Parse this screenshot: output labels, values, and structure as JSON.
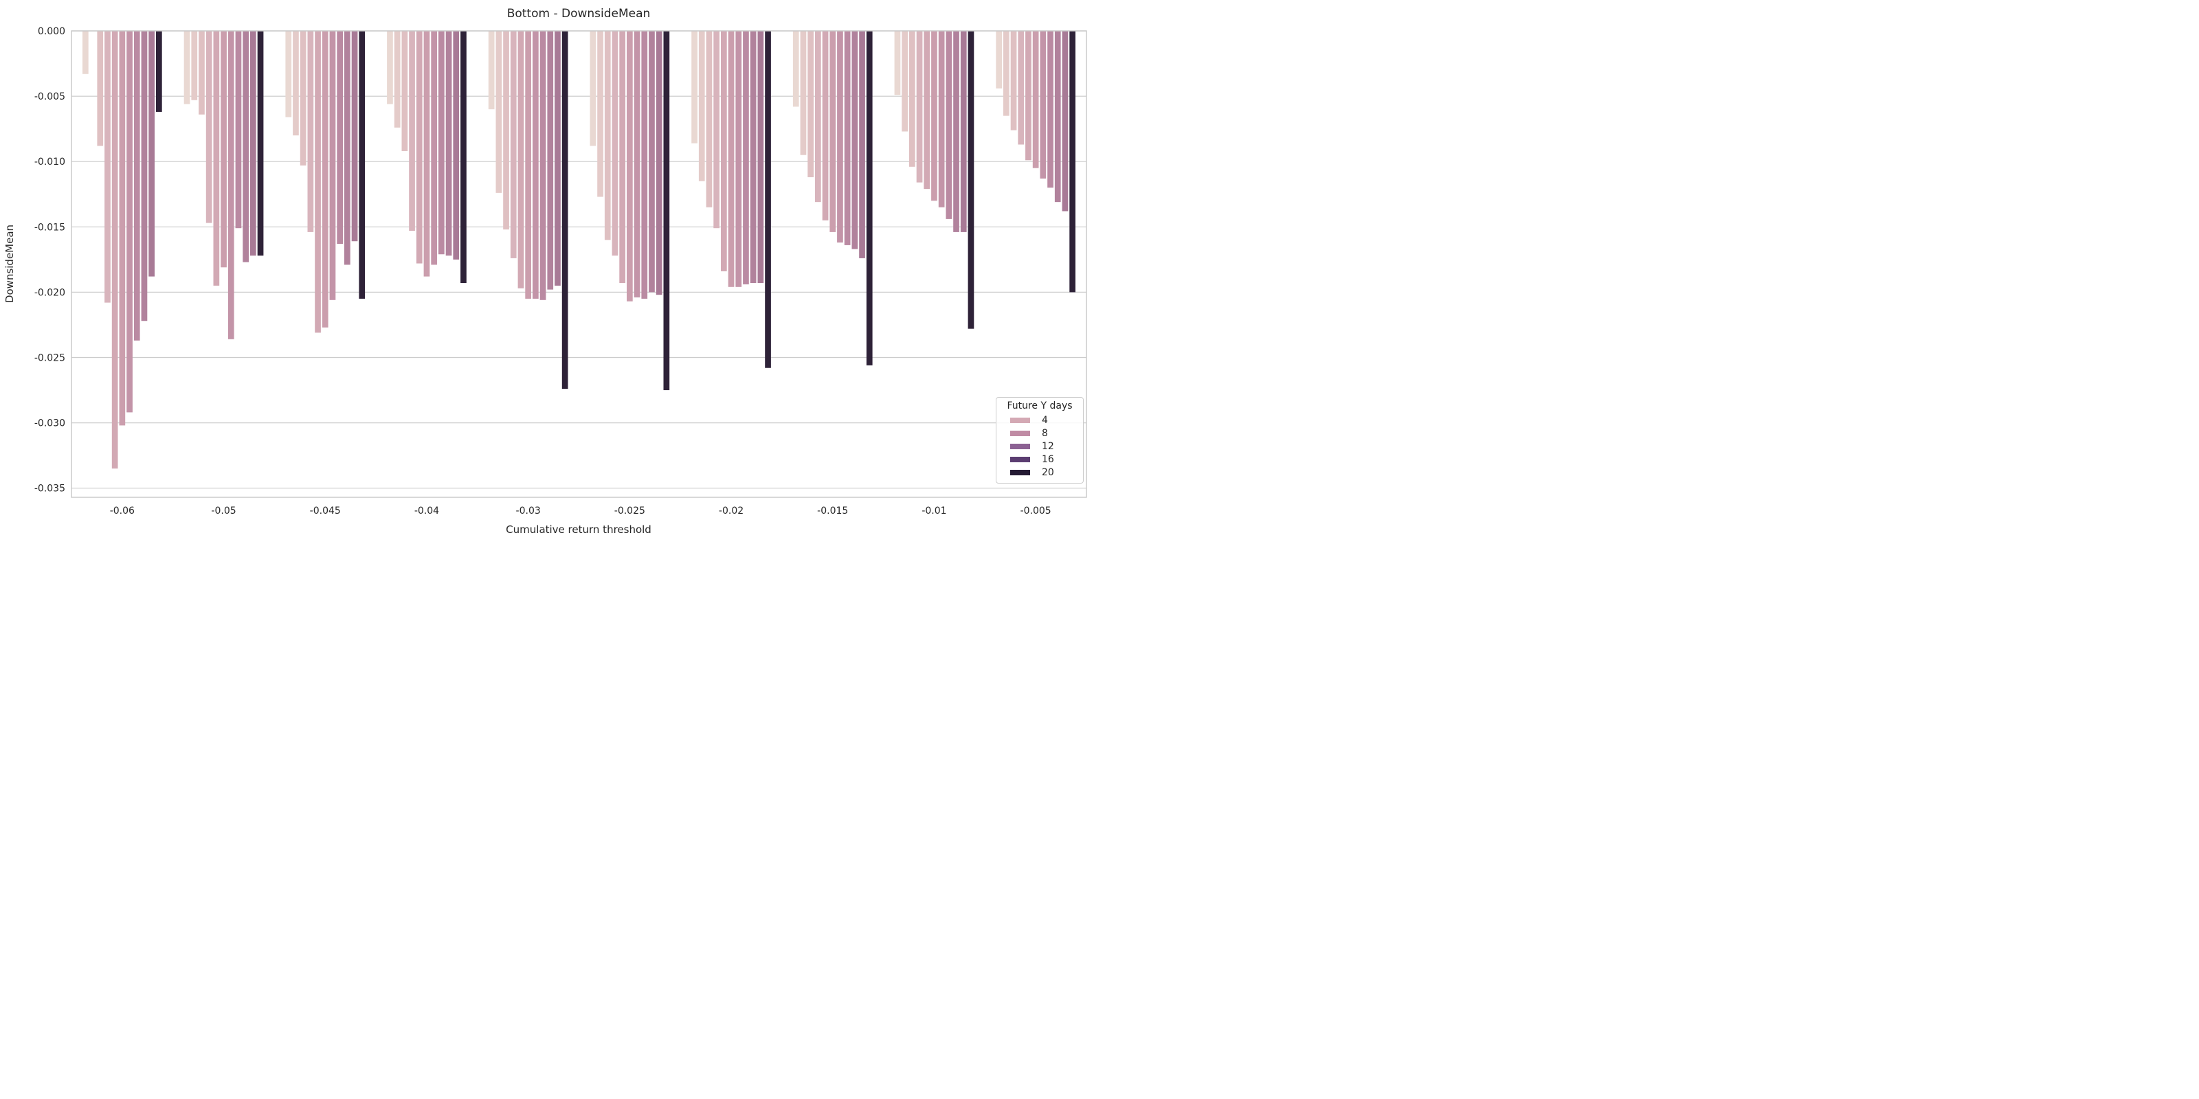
{
  "title": "Bottom - DownsideMean",
  "axes": {
    "xlabel": "Cumulative return threshold",
    "ylabel": "DownsideMean",
    "y_ticks": [
      "0.000",
      "-0.005",
      "-0.010",
      "-0.015",
      "-0.020",
      "-0.025",
      "-0.030",
      "-0.035"
    ],
    "x_ticks": [
      "-0.06",
      "-0.05",
      "-0.045",
      "-0.04",
      "-0.03",
      "-0.025",
      "-0.02",
      "-0.015",
      "-0.01",
      "-0.005"
    ]
  },
  "legend": {
    "title": "Future Y days",
    "entries": [
      {
        "label": "4",
        "color": "#d4a9b4"
      },
      {
        "label": "8",
        "color": "#c08ba4"
      },
      {
        "label": "12",
        "color": "#8c6193"
      },
      {
        "label": "16",
        "color": "#5b3d71"
      },
      {
        "label": "20",
        "color": "#241a33"
      }
    ]
  },
  "colors": {
    "text": "#262626",
    "grid": "#cccccc",
    "spine": "#c8c8c8",
    "background": "#ffffff"
  },
  "chart_data": {
    "type": "bar",
    "title": "Bottom - DownsideMean",
    "xlabel": "Cumulative return threshold",
    "ylabel": "DownsideMean",
    "ylim": [
      -0.0357,
      0
    ],
    "grid": "horizontal",
    "legend_position": "lower right",
    "categories": [
      "-0.06",
      "-0.05",
      "-0.045",
      "-0.04",
      "-0.03",
      "-0.025",
      "-0.02",
      "-0.015",
      "-0.01",
      "-0.005"
    ],
    "series": [
      {
        "name": "hue-01",
        "color": "#e9d8d2",
        "values": [
          -0.0033,
          -0.0056,
          -0.0066,
          -0.0056,
          -0.006,
          -0.0088,
          -0.0086,
          -0.0058,
          -0.0049,
          -0.0044
        ]
      },
      {
        "name": "hue-02",
        "color": "#e4cbc9",
        "values": [
          null,
          -0.0053,
          -0.008,
          -0.0074,
          -0.0124,
          -0.0127,
          -0.0115,
          -0.0095,
          -0.0077,
          -0.0065
        ]
      },
      {
        "name": "hue-03",
        "color": "#dfc0c2",
        "values": [
          -0.0088,
          -0.0064,
          -0.0103,
          -0.0092,
          -0.0152,
          -0.016,
          -0.0135,
          -0.0112,
          -0.0104,
          -0.0076
        ]
      },
      {
        "name": "hue-04",
        "color": "#d8b4bc",
        "values": [
          -0.0208,
          -0.0147,
          -0.0154,
          -0.0153,
          -0.0174,
          -0.0172,
          -0.0151,
          -0.0131,
          -0.0116,
          -0.0087
        ]
      },
      {
        "name": "hue-05",
        "color": "#d2a9b4",
        "values": [
          -0.0335,
          -0.0195,
          -0.0231,
          -0.0178,
          -0.0197,
          -0.0193,
          -0.0184,
          -0.0145,
          -0.0121,
          -0.0099
        ]
      },
      {
        "name": "hue-06",
        "color": "#cb9ead",
        "values": [
          -0.0302,
          -0.0181,
          -0.0227,
          -0.0188,
          -0.0205,
          -0.0207,
          -0.0196,
          -0.0154,
          -0.013,
          -0.0105
        ]
      },
      {
        "name": "hue-07",
        "color": "#c394a8",
        "values": [
          -0.0292,
          -0.0236,
          -0.0206,
          -0.0179,
          -0.0205,
          -0.0204,
          -0.0196,
          -0.0162,
          -0.0135,
          -0.0113
        ]
      },
      {
        "name": "hue-08",
        "color": "#ba8aa2",
        "values": [
          -0.0237,
          -0.0151,
          -0.0163,
          -0.0171,
          -0.0206,
          -0.0205,
          -0.0194,
          -0.0164,
          -0.0144,
          -0.012
        ]
      },
      {
        "name": "hue-09",
        "color": "#b1829c",
        "values": [
          -0.0222,
          -0.0177,
          -0.0179,
          -0.0172,
          -0.0198,
          -0.02,
          -0.0193,
          -0.0167,
          -0.0154,
          -0.0131
        ]
      },
      {
        "name": "hue-10",
        "color": "#a87a96",
        "values": [
          -0.0188,
          -0.0172,
          -0.0161,
          -0.0175,
          -0.0195,
          -0.0202,
          -0.0193,
          -0.0174,
          -0.0154,
          -0.0138
        ]
      },
      {
        "name": "hue-11",
        "color": "#2e2238",
        "values": [
          -0.0062,
          -0.0172,
          -0.0205,
          -0.0193,
          -0.0274,
          -0.0275,
          -0.0258,
          -0.0256,
          -0.0228,
          -0.02
        ]
      }
    ]
  }
}
